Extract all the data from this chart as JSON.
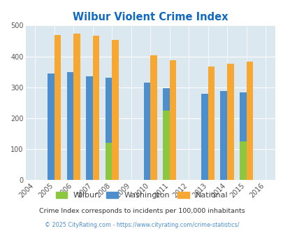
{
  "title": "Wilbur Violent Crime Index",
  "title_color": "#1169c0",
  "years": [
    2004,
    2005,
    2006,
    2007,
    2008,
    2009,
    2010,
    2011,
    2012,
    2013,
    2014,
    2015,
    2016
  ],
  "wilbur": {
    "2008": 120,
    "2011": 225,
    "2015": 125
  },
  "washington": {
    "2005": 345,
    "2006": 349,
    "2007": 335,
    "2008": 332,
    "2010": 315,
    "2011": 298,
    "2013": 278,
    "2014": 288,
    "2015": 283
  },
  "national": {
    "2005": 469,
    "2006": 473,
    "2007": 467,
    "2008": 453,
    "2010": 404,
    "2011": 387,
    "2013": 367,
    "2014": 376,
    "2015": 383
  },
  "wilbur_color": "#8dc63f",
  "washington_color": "#4d8fcc",
  "national_color": "#f6a832",
  "bg_color": "#dce8f0",
  "ylim": [
    0,
    500
  ],
  "yticks": [
    0,
    100,
    200,
    300,
    400,
    500
  ],
  "bar_width": 0.35,
  "subtitle": "Crime Index corresponds to incidents per 100,000 inhabitants",
  "subtitle_color": "#333333",
  "footer": "© 2025 CityRating.com - https://www.cityrating.com/crime-statistics/",
  "footer_color": "#4d8fcc",
  "legend_label_color": "#444444"
}
